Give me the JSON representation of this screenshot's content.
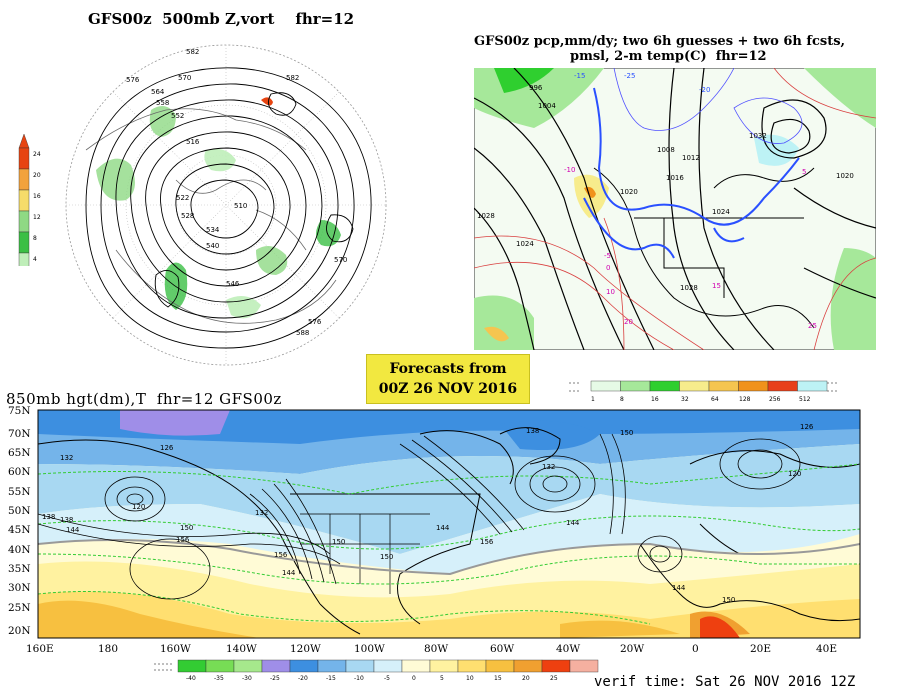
{
  "panels": {
    "hemispheric": {
      "title": "GFS00z  500mb Z,vort    fhr=12",
      "colorbar_ticks": [
        "24",
        "20",
        "16",
        "12",
        "8",
        "4"
      ],
      "contour_labels": [
        "582",
        "576",
        "570",
        "564",
        "558",
        "552",
        "546",
        "540",
        "534",
        "528",
        "522",
        "516",
        "510",
        "588",
        "582",
        "576",
        "570"
      ]
    },
    "precip": {
      "title_line1": "GFS00z pcp,mm/dy; two 6h guesses + two 6h fcsts,",
      "title_line2": "pmsl, 2-m temp(C)  fhr=12",
      "colorbar_ticks": [
        "1",
        "8",
        "16",
        "32",
        "64",
        "128",
        "256",
        "512"
      ],
      "isobar_labels": [
        "996",
        "1004",
        "1012",
        "1020",
        "1028",
        "1008",
        "1016",
        "1024",
        "1032",
        "1020",
        "1024",
        "1028"
      ],
      "temp_labels": [
        "-10",
        "-5",
        "0",
        "5",
        "10",
        "15",
        "20",
        "25",
        "-15",
        "-20",
        "-25"
      ]
    },
    "analysis": {
      "title": "850mb hgt(dm),T  fhr=12 GFS00z",
      "lat_labels": [
        "75N",
        "70N",
        "65N",
        "60N",
        "55N",
        "50N",
        "45N",
        "40N",
        "35N",
        "30N",
        "25N",
        "20N"
      ],
      "lon_labels": [
        "160E",
        "180",
        "160W",
        "140W",
        "120W",
        "100W",
        "80W",
        "60W",
        "40W",
        "20W",
        "0",
        "20E",
        "40E"
      ],
      "colorbar_ticks": [
        "-40",
        "-35",
        "-30",
        "-25",
        "-20",
        "-15",
        "-10",
        "-5",
        "0",
        "5",
        "10",
        "15",
        "20",
        "25"
      ],
      "height_labels": [
        "126",
        "132",
        "138",
        "144",
        "150",
        "156",
        "120",
        "132",
        "138",
        "144",
        "150",
        "156",
        "150",
        "144",
        "132",
        "126",
        "120",
        "144",
        "150",
        "138",
        "144",
        "150",
        "156"
      ]
    }
  },
  "banner": {
    "line1": "Forecasts from",
    "line2": "00Z 26 NOV 2016"
  },
  "footer": {
    "verif_time": "verif time: Sat 26 NOV 2016 12Z"
  },
  "colors": {
    "t2m_scale": [
      "#33cc33",
      "#77dd55",
      "#a6e88c",
      "#9f8ee8",
      "#3d8fe0",
      "#74b4ea",
      "#a8d8f2",
      "#d6f0fa",
      "#fffbd6",
      "#fff2a0",
      "#ffdf70",
      "#f7c040",
      "#f0a030",
      "#ee4010",
      "#f5b0a0"
    ],
    "pcp_scale": [
      "#e6fae6",
      "#a6e89a",
      "#2fcf2f",
      "#f7ec8c",
      "#f5c550",
      "#f0921c",
      "#e8401a",
      "#bdf2f5"
    ],
    "vort_scale": [
      "#e74411",
      "#f2a23c",
      "#f6dc6a",
      "#8fd984",
      "#3bbf45",
      "#bfeeb9"
    ]
  }
}
